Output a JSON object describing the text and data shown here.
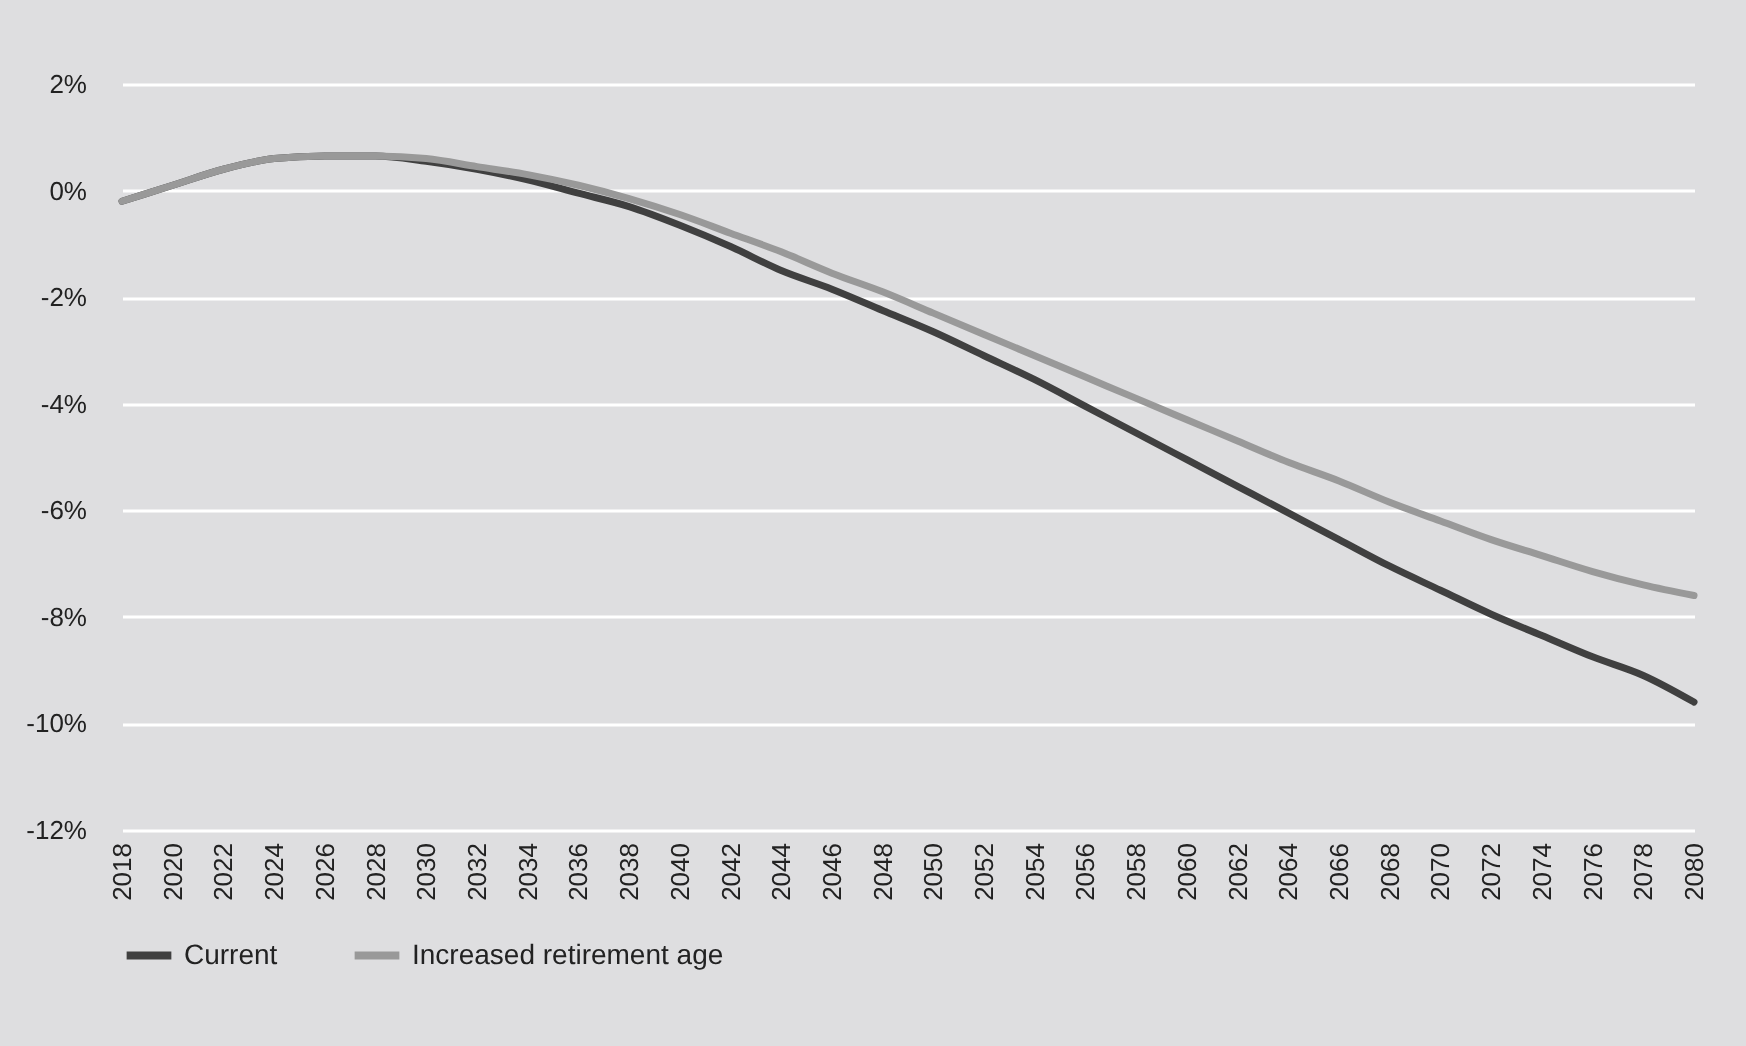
{
  "chart_data": {
    "type": "line",
    "categories": [
      "2018",
      "2020",
      "2022",
      "2024",
      "2026",
      "2028",
      "2030",
      "2032",
      "2034",
      "2036",
      "2038",
      "2040",
      "2042",
      "2044",
      "2046",
      "2048",
      "2050",
      "2052",
      "2054",
      "2056",
      "2058",
      "2060",
      "2062",
      "2064",
      "2066",
      "2068",
      "2070",
      "2072",
      "2074",
      "2076",
      "2078",
      "2080"
    ],
    "series": [
      {
        "name": "Current",
        "color": "#404040",
        "values": [
          -0.2,
          0.1,
          0.4,
          0.6,
          0.65,
          0.65,
          0.55,
          0.4,
          0.2,
          -0.05,
          -0.3,
          -0.65,
          -1.05,
          -1.5,
          -1.85,
          -2.25,
          -2.65,
          -3.1,
          -3.55,
          -4.05,
          -4.55,
          -5.05,
          -5.55,
          -6.05,
          -6.55,
          -7.05,
          -7.5,
          -7.95,
          -8.35,
          -8.75,
          -9.1,
          -9.6
        ]
      },
      {
        "name": "Increased retirement age",
        "color": "#999999",
        "values": [
          -0.2,
          0.1,
          0.4,
          0.6,
          0.65,
          0.65,
          0.6,
          0.45,
          0.3,
          0.1,
          -0.15,
          -0.45,
          -0.8,
          -1.15,
          -1.55,
          -1.9,
          -2.3,
          -2.7,
          -3.1,
          -3.5,
          -3.9,
          -4.3,
          -4.7,
          -5.1,
          -5.45,
          -5.85,
          -6.2,
          -6.55,
          -6.85,
          -7.15,
          -7.4,
          -7.6
        ]
      }
    ],
    "ylim": [
      -12,
      2
    ],
    "yticks": [
      {
        "value": -12,
        "label": "-12%"
      },
      {
        "value": -10,
        "label": "-10%"
      },
      {
        "value": -8,
        "label": "-8%"
      },
      {
        "value": -6,
        "label": "-6%"
      },
      {
        "value": -4,
        "label": "-4%"
      },
      {
        "value": -2,
        "label": "-2%"
      },
      {
        "value": 0,
        "label": "0%"
      },
      {
        "value": 2,
        "label": "2%"
      }
    ],
    "grid": "y",
    "legend": "bottom",
    "marker": "none",
    "line_style": "solid"
  }
}
